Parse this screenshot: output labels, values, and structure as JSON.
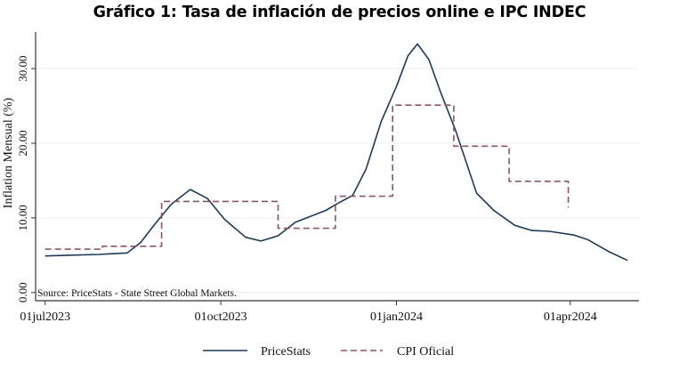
{
  "chart_data": {
    "type": "line",
    "title": "Gráfico 1: Tasa de inflación de precios online e IPC INDEC",
    "ylabel": "Inflation Mensual (%)",
    "xlabel": "",
    "note": "Source: PriceStats - State Street Global Markets.",
    "xlim": [
      "2023-06-26",
      "2024-05-07"
    ],
    "ylim": [
      -1.1,
      34.9
    ],
    "x_ticks": [
      {
        "date": "2023-07-01",
        "label": "01jul2023"
      },
      {
        "date": "2023-10-01",
        "label": "01oct2023"
      },
      {
        "date": "2024-01-01",
        "label": "01jan2024"
      },
      {
        "date": "2024-04-01",
        "label": "01apr2024"
      }
    ],
    "y_ticks": [
      {
        "value": 0,
        "label": "0.00"
      },
      {
        "value": 10,
        "label": "10.00"
      },
      {
        "value": 20,
        "label": "20.00"
      },
      {
        "value": 30,
        "label": "30.00"
      }
    ],
    "grid": true,
    "legend_position": "bottom",
    "series": [
      {
        "name": "PriceStats",
        "style": "solid",
        "color": "#1f3a56",
        "points": [
          [
            "2023-07-01",
            4.9
          ],
          [
            "2023-07-15",
            5.0
          ],
          [
            "2023-07-29",
            5.1
          ],
          [
            "2023-08-13",
            5.3
          ],
          [
            "2023-08-20",
            6.7
          ],
          [
            "2023-08-27",
            9.0
          ],
          [
            "2023-09-05",
            11.8
          ],
          [
            "2023-09-15",
            13.8
          ],
          [
            "2023-09-24",
            12.6
          ],
          [
            "2023-10-03",
            9.8
          ],
          [
            "2023-10-14",
            7.4
          ],
          [
            "2023-10-22",
            6.9
          ],
          [
            "2023-10-31",
            7.6
          ],
          [
            "2023-11-09",
            9.4
          ],
          [
            "2023-11-25",
            11.0
          ],
          [
            "2023-12-01",
            11.9
          ],
          [
            "2023-12-09",
            13.0
          ],
          [
            "2023-12-16",
            16.5
          ],
          [
            "2023-12-24",
            22.9
          ],
          [
            "2024-01-01",
            27.6
          ],
          [
            "2024-01-07",
            31.7
          ],
          [
            "2024-01-12",
            33.3
          ],
          [
            "2024-01-18",
            31.2
          ],
          [
            "2024-01-24",
            26.9
          ],
          [
            "2024-02-01",
            21.7
          ],
          [
            "2024-02-12",
            13.3
          ],
          [
            "2024-02-21",
            11.0
          ],
          [
            "2024-03-03",
            9.0
          ],
          [
            "2024-03-12",
            8.3
          ],
          [
            "2024-03-21",
            8.2
          ],
          [
            "2024-04-03",
            7.7
          ],
          [
            "2024-04-10",
            7.1
          ],
          [
            "2024-04-21",
            5.5
          ],
          [
            "2024-05-01",
            4.3
          ]
        ]
      },
      {
        "name": "CPI Oficial",
        "style": "dashed",
        "color": "#8c5563",
        "points": [
          [
            "2023-07-01",
            5.8
          ],
          [
            "2023-07-31",
            5.8
          ],
          [
            "2023-07-31",
            6.2
          ],
          [
            "2023-08-31",
            6.2
          ],
          [
            "2023-08-31",
            12.2
          ],
          [
            "2023-10-31",
            12.2
          ],
          [
            "2023-10-31",
            8.6
          ],
          [
            "2023-11-30",
            8.6
          ],
          [
            "2023-11-30",
            12.9
          ],
          [
            "2023-12-30",
            12.9
          ],
          [
            "2023-12-30",
            25.1
          ],
          [
            "2024-01-31",
            25.1
          ],
          [
            "2024-01-31",
            19.6
          ],
          [
            "2024-02-29",
            19.6
          ],
          [
            "2024-02-29",
            14.9
          ],
          [
            "2024-03-31",
            14.9
          ],
          [
            "2024-03-31",
            11.4
          ]
        ]
      }
    ]
  }
}
